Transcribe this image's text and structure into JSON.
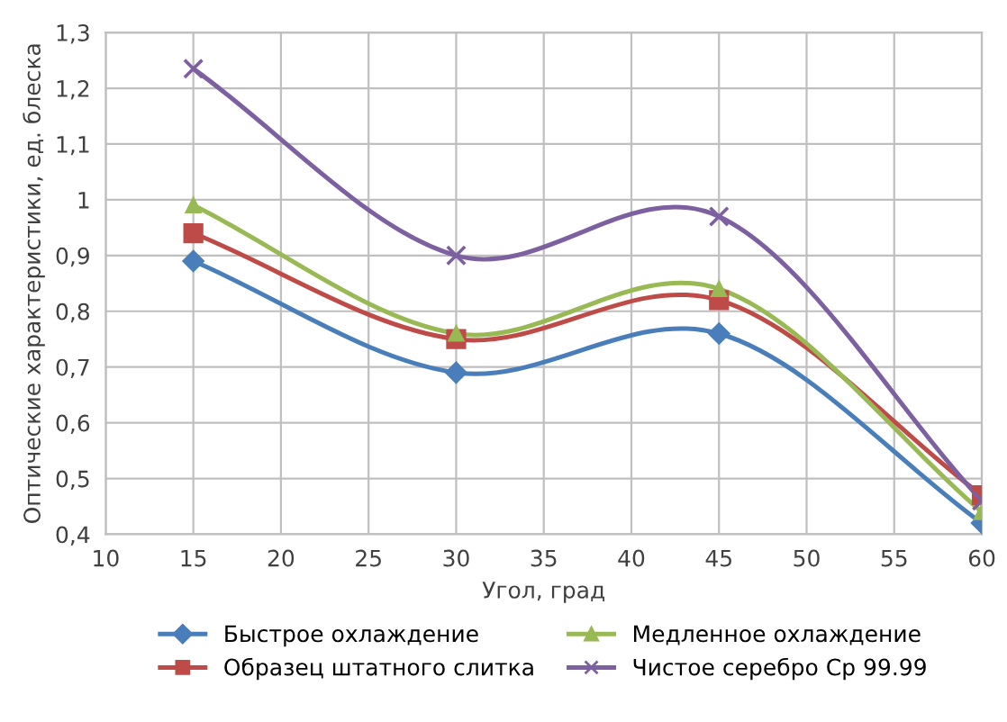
{
  "chart_data": {
    "type": "line",
    "xlabel": "Угол, град",
    "ylabel": "Оптические характеристики, ед. блеска",
    "x": [
      15,
      30,
      45,
      60
    ],
    "series": [
      {
        "name": "Быстрое охлаждение",
        "color": "#4a7ebb",
        "marker": "diamond",
        "values": [
          0.89,
          0.69,
          0.76,
          0.42
        ]
      },
      {
        "name": "Образец штатного слитка",
        "color": "#be4b48",
        "marker": "square",
        "values": [
          0.94,
          0.75,
          0.82,
          0.47
        ]
      },
      {
        "name": "Медленное охлаждение",
        "color": "#98b954",
        "marker": "triangle",
        "values": [
          0.99,
          0.76,
          0.84,
          0.44
        ]
      },
      {
        "name": "Чистое серебро Ср 99.99",
        "color": "#7d60a0",
        "marker": "cross",
        "values": [
          1.235,
          0.9,
          0.97,
          0.46
        ]
      }
    ],
    "xlim": [
      10,
      60
    ],
    "xticks": [
      10,
      15,
      20,
      25,
      30,
      35,
      40,
      45,
      50,
      55,
      60
    ],
    "ylim": [
      0.4,
      1.3
    ],
    "yticks": [
      {
        "value": 0.4,
        "label": "0,4"
      },
      {
        "value": 0.5,
        "label": "0,5"
      },
      {
        "value": 0.6,
        "label": "0,6"
      },
      {
        "value": 0.7,
        "label": "0,7"
      },
      {
        "value": 0.8,
        "label": "0,8"
      },
      {
        "value": 0.9,
        "label": "0,9"
      },
      {
        "value": 1,
        "label": "1"
      },
      {
        "value": 1.1,
        "label": "1,1"
      },
      {
        "value": 1.2,
        "label": "1,2"
      },
      {
        "value": 1.3,
        "label": "1,3"
      }
    ],
    "grid": true,
    "legend": "bottom",
    "line_style": "solid"
  }
}
